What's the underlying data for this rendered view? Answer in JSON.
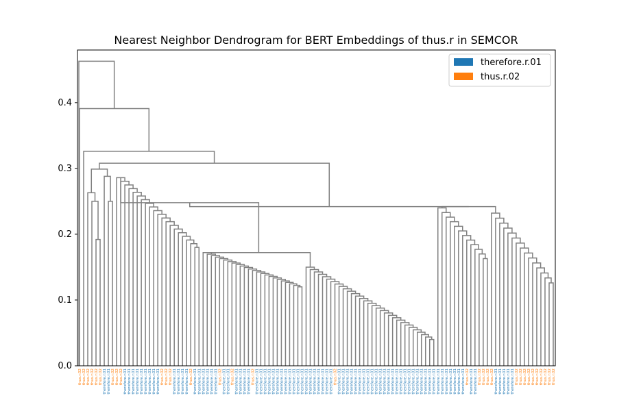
{
  "chart_data": {
    "type": "dendrogram",
    "title": "Nearest Neighbor Dendrogram for BERT Embeddings of thus.r in SEMCOR",
    "xlabel": "",
    "ylabel": "",
    "ylim": [
      0,
      0.48
    ],
    "yticks": [
      0.0,
      0.1,
      0.2,
      0.3,
      0.4
    ],
    "legend_position": "top-right",
    "grid": false,
    "link_color": "#808080",
    "legend": [
      {
        "label": "therefore.r.01",
        "color": "#1f77b4"
      },
      {
        "label": "thus.r.02",
        "color": "#ff7f0e"
      }
    ],
    "leaf_count": 116,
    "top_merge_heights": [
      0.463,
      0.391,
      0.326,
      0.308,
      0.248,
      0.242,
      0.172
    ],
    "leaves": [
      "thus.r.02",
      "thus.r.02",
      "thus.r.02",
      "thus.r.02",
      "thus.r.02",
      "thus.r.02",
      "therefore.r.01",
      "therefore.r.01",
      "thus.r.02",
      "thus.r.02",
      "thus.r.02",
      "therefore.r.01",
      "therefore.r.01",
      "therefore.r.01",
      "therefore.r.01",
      "therefore.r.01",
      "therefore.r.01",
      "therefore.r.01",
      "therefore.r.01",
      "therefore.r.01",
      "thus.r.02",
      "thus.r.02",
      "thus.r.02",
      "therefore.r.01",
      "therefore.r.01",
      "therefore.r.01",
      "therefore.r.01",
      "thus.r.02",
      "therefore.r.01",
      "therefore.r.01",
      "therefore.r.01",
      "therefore.r.01",
      "therefore.r.01",
      "therefore.r.01",
      "thus.r.02",
      "therefore.r.01",
      "therefore.r.01",
      "thus.r.02",
      "therefore.r.01",
      "therefore.r.01",
      "therefore.r.01",
      "therefore.r.01",
      "thus.r.02",
      "therefore.r.01",
      "therefore.r.01",
      "therefore.r.01",
      "therefore.r.01",
      "therefore.r.01",
      "therefore.r.01",
      "therefore.r.01",
      "therefore.r.01",
      "therefore.r.01",
      "therefore.r.01",
      "therefore.r.01",
      "therefore.r.01",
      "therefore.r.01",
      "therefore.r.01",
      "therefore.r.01",
      "therefore.r.01",
      "therefore.r.01",
      "therefore.r.01",
      "therefore.r.01",
      "thus.r.02",
      "therefore.r.01",
      "therefore.r.01",
      "therefore.r.01",
      "therefore.r.01",
      "therefore.r.01",
      "therefore.r.01",
      "therefore.r.01",
      "therefore.r.01",
      "therefore.r.01",
      "therefore.r.01",
      "therefore.r.01",
      "therefore.r.01",
      "therefore.r.01",
      "therefore.r.01",
      "therefore.r.01",
      "therefore.r.01",
      "therefore.r.01",
      "therefore.r.01",
      "therefore.r.01",
      "therefore.r.01",
      "therefore.r.01",
      "therefore.r.01",
      "therefore.r.01",
      "therefore.r.01",
      "therefore.r.01",
      "therefore.r.01",
      "therefore.r.01",
      "therefore.r.01",
      "therefore.r.01",
      "therefore.r.01",
      "therefore.r.01",
      "thus.r.02",
      "therefore.r.01",
      "therefore.r.01",
      "thus.r.02",
      "thus.r.02",
      "thus.r.02",
      "thus.r.02",
      "therefore.r.01",
      "therefore.r.01",
      "therefore.r.01",
      "therefore.r.01",
      "therefore.r.01",
      "thus.r.02",
      "thus.r.02",
      "thus.r.02",
      "thus.r.02",
      "thus.r.02",
      "thus.r.02",
      "thus.r.02",
      "thus.r.02",
      "thus.r.02",
      "thus.r.02"
    ]
  }
}
